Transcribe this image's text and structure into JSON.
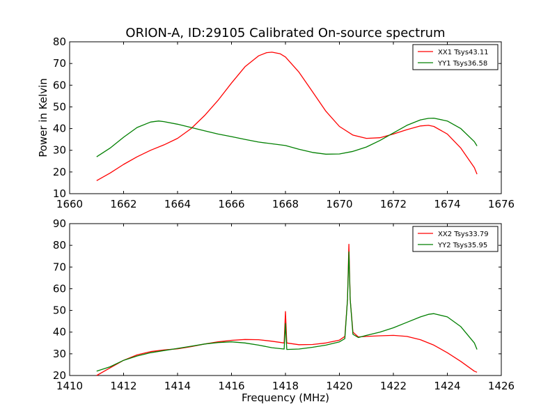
{
  "chart_data": [
    {
      "type": "line",
      "title": "ORION-A, ID:29105 Calibrated On-source spectrum",
      "xlabel": "",
      "ylabel": "Power in Kelvin",
      "xlim": [
        1660,
        1676
      ],
      "ylim": [
        10,
        80
      ],
      "xticks": [
        1660,
        1662,
        1664,
        1666,
        1668,
        1670,
        1672,
        1674,
        1676
      ],
      "yticks": [
        10,
        20,
        30,
        40,
        50,
        60,
        70,
        80
      ],
      "grid": false,
      "legend": "upper right",
      "series": [
        {
          "name": "XX1 Tsys43.11",
          "color": "#ff0000",
          "x": [
            1661.0,
            1661.5,
            1662.0,
            1662.5,
            1663.0,
            1663.5,
            1664.0,
            1664.5,
            1665.0,
            1665.5,
            1666.0,
            1666.5,
            1667.0,
            1667.3,
            1667.5,
            1667.8,
            1668.0,
            1668.5,
            1669.0,
            1669.5,
            1670.0,
            1670.5,
            1671.0,
            1671.5,
            1672.0,
            1672.5,
            1673.0,
            1673.3,
            1673.5,
            1674.0,
            1674.5,
            1675.0,
            1675.1
          ],
          "values": [
            16,
            19.5,
            23.5,
            27,
            30,
            32.5,
            35.5,
            40,
            46,
            53,
            61,
            68.5,
            73.5,
            75,
            75.2,
            74.5,
            73,
            66,
            57,
            48,
            41,
            37,
            35.5,
            35.8,
            37.5,
            39.5,
            41.2,
            41.5,
            41,
            37.5,
            31,
            22,
            19
          ]
        },
        {
          "name": "YY1 Tsys36.58",
          "color": "#007f00",
          "x": [
            1661.0,
            1661.5,
            1662.0,
            1662.5,
            1663.0,
            1663.3,
            1663.5,
            1664.0,
            1664.5,
            1665.0,
            1665.5,
            1666.0,
            1666.5,
            1667.0,
            1667.5,
            1668.0,
            1668.5,
            1669.0,
            1669.5,
            1670.0,
            1670.5,
            1671.0,
            1671.5,
            1672.0,
            1672.5,
            1673.0,
            1673.3,
            1673.5,
            1674.0,
            1674.5,
            1675.0,
            1675.1
          ],
          "values": [
            27,
            31,
            36,
            40.5,
            43,
            43.5,
            43.2,
            42,
            40.5,
            39,
            37.5,
            36.3,
            35,
            33.8,
            33,
            32.2,
            30.5,
            29,
            28.2,
            28.3,
            29.5,
            31.5,
            34.5,
            38,
            41.5,
            44,
            44.7,
            44.8,
            43.5,
            40,
            34,
            32
          ]
        }
      ]
    },
    {
      "type": "line",
      "title": "",
      "xlabel": "Frequency (MHz)",
      "ylabel": "",
      "xlim": [
        1410,
        1426
      ],
      "ylim": [
        20,
        90
      ],
      "xticks": [
        1410,
        1412,
        1414,
        1416,
        1418,
        1420,
        1422,
        1424,
        1426
      ],
      "yticks": [
        20,
        30,
        40,
        50,
        60,
        70,
        80,
        90
      ],
      "grid": false,
      "legend": "upper right",
      "series": [
        {
          "name": "XX2 Tsys33.79",
          "color": "#ff0000",
          "x": [
            1411.0,
            1411.5,
            1412.0,
            1412.5,
            1413.0,
            1413.5,
            1414.0,
            1414.5,
            1415.0,
            1415.5,
            1416.0,
            1416.5,
            1417.0,
            1417.5,
            1417.95,
            1418.0,
            1418.05,
            1418.5,
            1419.0,
            1419.5,
            1420.0,
            1420.2,
            1420.3,
            1420.35,
            1420.4,
            1420.5,
            1420.7,
            1421.0,
            1421.5,
            1422.0,
            1422.5,
            1423.0,
            1423.5,
            1424.0,
            1424.5,
            1425.0,
            1425.1
          ],
          "values": [
            20,
            23.5,
            27,
            29.5,
            31,
            31.8,
            32.3,
            33.3,
            34.5,
            35.5,
            36.2,
            36.6,
            36.5,
            35.8,
            35,
            49.5,
            35,
            34.2,
            34.3,
            35,
            36.3,
            38,
            55,
            80.5,
            55,
            40,
            37.8,
            38,
            38.3,
            38.5,
            38,
            36.5,
            34,
            30.5,
            26.5,
            22,
            21.5
          ]
        },
        {
          "name": "YY2 Tsys35.95",
          "color": "#007f00",
          "x": [
            1411.0,
            1411.5,
            1412.0,
            1412.5,
            1413.0,
            1413.5,
            1414.0,
            1414.5,
            1415.0,
            1415.5,
            1416.0,
            1416.5,
            1417.0,
            1417.5,
            1417.95,
            1418.0,
            1418.05,
            1418.5,
            1419.0,
            1419.5,
            1420.0,
            1420.2,
            1420.3,
            1420.35,
            1420.4,
            1420.5,
            1420.7,
            1421.0,
            1421.5,
            1422.0,
            1422.5,
            1423.0,
            1423.3,
            1423.5,
            1424.0,
            1424.5,
            1425.0,
            1425.1
          ],
          "values": [
            22,
            24,
            27,
            29,
            30.5,
            31.5,
            32.5,
            33.5,
            34.5,
            35.2,
            35.5,
            35,
            34,
            32.8,
            32.2,
            44,
            32,
            32.2,
            33,
            34,
            35.5,
            37,
            55,
            77,
            55,
            39,
            37.5,
            38.5,
            40,
            42,
            44.5,
            47,
            48.2,
            48.5,
            47,
            42.5,
            35,
            32
          ]
        }
      ]
    }
  ]
}
